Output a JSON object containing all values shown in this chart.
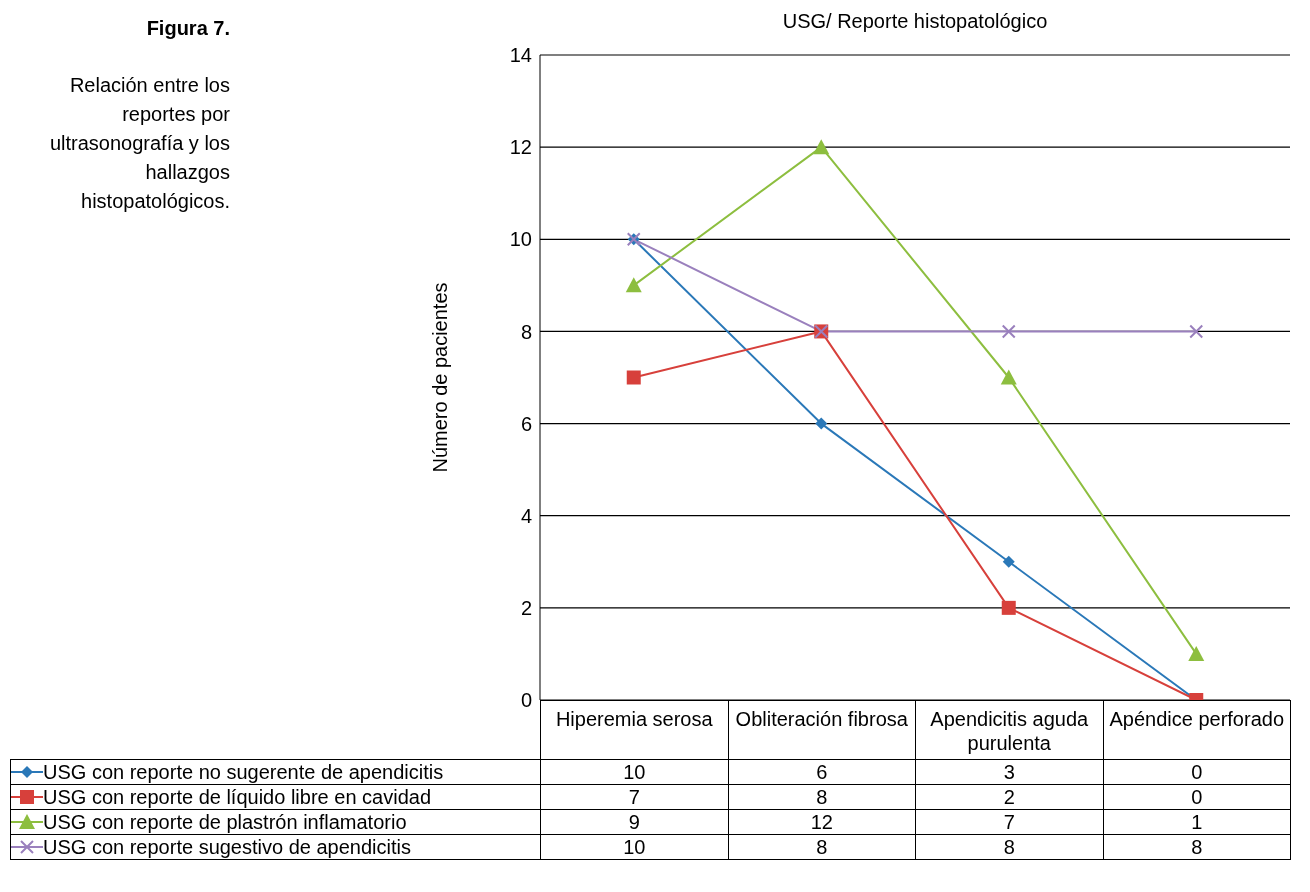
{
  "chart_data": {
    "type": "line",
    "title": "USG/ Reporte histopatológico",
    "ylabel": "Número de pacientes",
    "annotations": [
      "Figura 7.",
      "Relación entre los reportes por ultrasonografía y los hallazgos histopatológicos."
    ],
    "categories": [
      "Hiperemia serosa",
      "Obliteración fibrosa",
      "Apendicitis aguda purulenta",
      "Apéndice perforado"
    ],
    "series": [
      {
        "name": "USG con reporte no sugerente de apendicitis",
        "color": "#2a78b8",
        "marker": "diamond",
        "values": [
          10,
          6,
          3,
          0
        ]
      },
      {
        "name": "USG con reporte de líquido libre en cavidad",
        "color": "#d7403b",
        "marker": "square",
        "values": [
          7,
          8,
          2,
          0
        ]
      },
      {
        "name": "USG con reporte de plastrón inflamatorio",
        "color": "#8dbe3f",
        "marker": "triangle",
        "values": [
          9,
          12,
          7,
          1
        ]
      },
      {
        "name": "USG con reporte sugestivo de apendicitis",
        "color": "#9a80bd",
        "marker": "cross",
        "values": [
          10,
          8,
          8,
          8
        ]
      }
    ],
    "ylim": [
      0,
      14
    ],
    "yticks": [
      0,
      2,
      4,
      6,
      8,
      10,
      12,
      14
    ],
    "grid": "y",
    "legend": "bottom",
    "data_labels": true
  }
}
